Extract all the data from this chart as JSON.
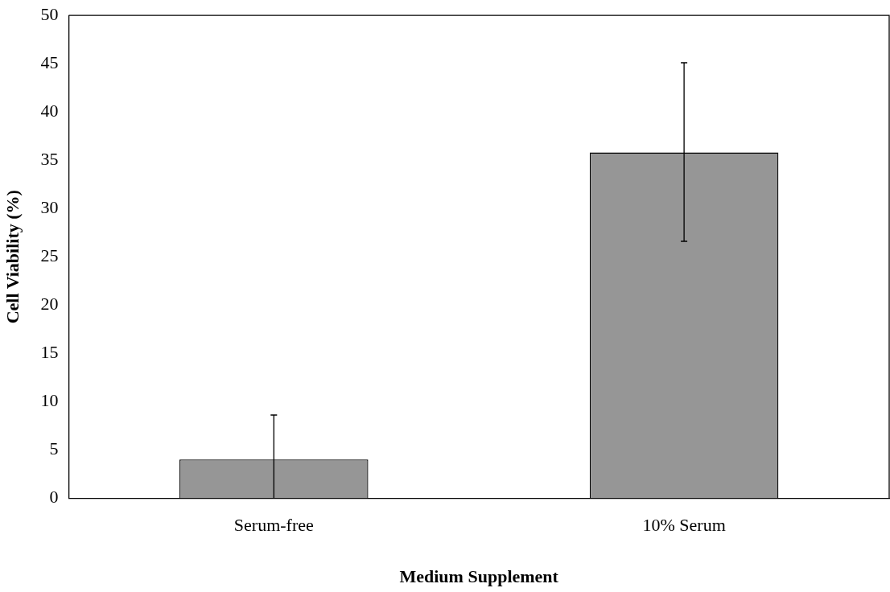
{
  "chart_data": {
    "type": "bar",
    "xlabel": "Medium Supplement",
    "ylabel": "Cell Viability (%)",
    "categories": [
      "Serum-free",
      "10% Serum"
    ],
    "values": [
      4.0,
      35.8
    ],
    "errors": [
      [
        0,
        8.6
      ],
      [
        26.6,
        45.1
      ]
    ],
    "color": "#969696",
    "ylim": [
      0,
      50
    ],
    "yticks": [
      0,
      5,
      10,
      15,
      20,
      25,
      30,
      35,
      40,
      45,
      50
    ],
    "grid": false,
    "legend": false
  }
}
